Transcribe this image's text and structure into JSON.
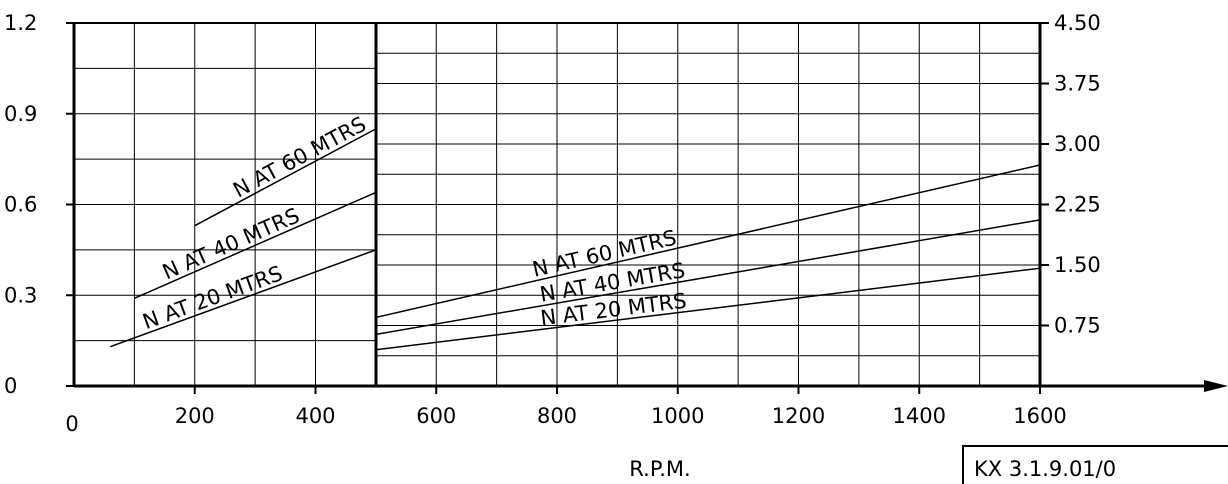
{
  "chart_data": {
    "type": "line",
    "title": "",
    "xlabel": "R.P.M.",
    "x_ticks": [
      "0",
      "200",
      "400",
      "600",
      "800",
      "1000",
      "1200",
      "1400",
      "1600"
    ],
    "xlim": [
      0,
      1600
    ],
    "ylim_left": [
      0,
      1.2
    ],
    "ylim_right": [
      0,
      4.5
    ],
    "left_ticks": [
      "0",
      "0.3",
      "0.6",
      "0.9",
      "1.2"
    ],
    "right_ticks": [
      "0.75",
      "1.50",
      "2.25",
      "3.00",
      "3.75",
      "4.50"
    ],
    "panels": [
      {
        "x_range": [
          0,
          500
        ],
        "axis": "left",
        "series": [
          {
            "name": "N AT 60 MTRS",
            "x": [
              200,
              500
            ],
            "y": [
              0.53,
              0.85
            ]
          },
          {
            "name": "N AT 40 MTRS",
            "x": [
              100,
              500
            ],
            "y": [
              0.29,
              0.64
            ]
          },
          {
            "name": "N AT 20 MTRS",
            "x": [
              60,
              500
            ],
            "y": [
              0.13,
              0.45
            ]
          }
        ]
      },
      {
        "x_range": [
          500,
          1600
        ],
        "axis": "right",
        "series": [
          {
            "name": "N AT 60 MTRS",
            "x": [
              500,
              1600
            ],
            "y": [
              0.85,
              2.74
            ]
          },
          {
            "name": "N AT 40 MTRS",
            "x": [
              500,
              1600
            ],
            "y": [
              0.64,
              2.06
            ]
          },
          {
            "name": "N AT 20 MTRS",
            "x": [
              500,
              1600
            ],
            "y": [
              0.45,
              1.46
            ]
          }
        ]
      }
    ],
    "grid": true,
    "drawing_ref": "KX 3.1.9.01/0"
  }
}
